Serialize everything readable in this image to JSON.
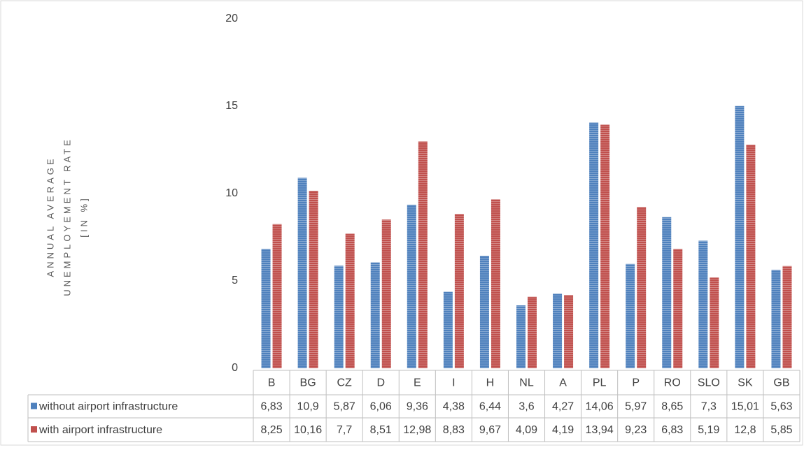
{
  "chart_data": {
    "type": "bar",
    "ylabel": [
      "ANNUAL AVERAGE",
      "UNEMPLOYEMENT RATE",
      "[IN %]"
    ],
    "categories": [
      "B",
      "BG",
      "CZ",
      "D",
      "E",
      "I",
      "H",
      "NL",
      "A",
      "PL",
      "P",
      "RO",
      "SLO",
      "SK",
      "GB"
    ],
    "series": [
      {
        "name": "without airport infrastructure",
        "color": "#4f81bd",
        "values": [
          6.83,
          10.9,
          5.87,
          6.06,
          9.36,
          4.38,
          6.44,
          3.6,
          4.27,
          14.06,
          5.97,
          8.65,
          7.3,
          15.01,
          5.63
        ],
        "value_labels": [
          "6,83",
          "10,9",
          "5,87",
          "6,06",
          "9,36",
          "4,38",
          "6,44",
          "3,6",
          "4,27",
          "14,06",
          "5,97",
          "8,65",
          "7,3",
          "15,01",
          "5,63"
        ]
      },
      {
        "name": "with airport infrastructure",
        "color": "#c0504d",
        "values": [
          8.25,
          10.16,
          7.7,
          8.51,
          12.98,
          8.83,
          9.67,
          4.09,
          4.19,
          13.94,
          9.23,
          6.83,
          5.19,
          12.8,
          5.85
        ],
        "value_labels": [
          "8,25",
          "10,16",
          "7,7",
          "8,51",
          "12,98",
          "8,83",
          "9,67",
          "4,09",
          "4,19",
          "13,94",
          "9,23",
          "6,83",
          "5,19",
          "12,8",
          "5,85"
        ]
      }
    ],
    "ylim": [
      0,
      20
    ],
    "yticks": [
      0,
      5,
      10,
      15,
      20
    ],
    "grid": false,
    "legend": "table"
  }
}
